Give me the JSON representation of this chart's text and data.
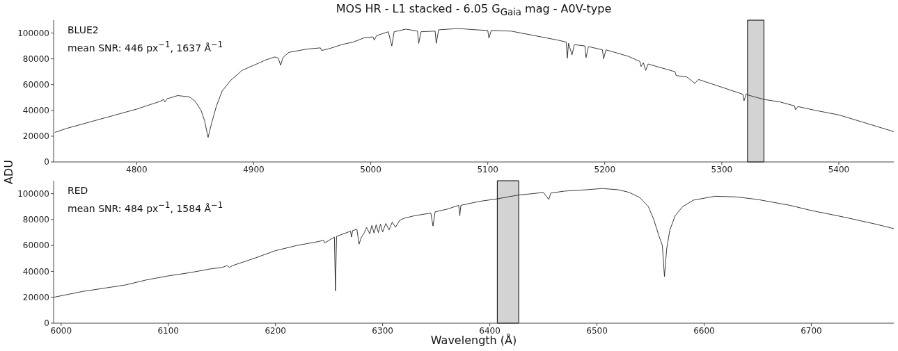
{
  "chart_data": [
    {
      "type": "line",
      "title": "MOS HR - L1 stacked - 6.05 G$_{Gaia}$ mag - A0V-type",
      "ylabel": "ADU",
      "annotations": [
        "BLUE2",
        "mean SNR: 446 px$^{−1}$, 1637 Å$^{−1}$"
      ],
      "xlim": [
        4729,
        5447
      ],
      "xticks": [
        4800,
        4900,
        5000,
        5100,
        5200,
        5300,
        5400
      ],
      "ylim": [
        0,
        110000
      ],
      "yticks": [
        0,
        20000,
        40000,
        60000,
        80000,
        100000
      ],
      "bands": [
        {
          "axis": "x",
          "from": 5322,
          "to": 5336,
          "color": "#d3d3d3"
        }
      ],
      "series": [
        {
          "color": "#222222",
          "x": [
            4730,
            4740,
            4760,
            4780,
            4800,
            4820,
            4823,
            4824,
            4826,
            4835,
            4845,
            4850,
            4855,
            4858,
            4861,
            4864,
            4868,
            4873,
            4880,
            4890,
            4900,
            4910,
            4918,
            4921,
            4923,
            4925,
            4930,
            4945,
            4957,
            4958,
            4965,
            4975,
            4985,
            4995,
            5002,
            5003,
            5005,
            5015,
            5018,
            5020,
            5030,
            5040,
            5041,
            5043,
            5055,
            5056,
            5058,
            5075,
            5090,
            5100,
            5101,
            5103,
            5120,
            5140,
            5160,
            5167,
            5168,
            5169,
            5172,
            5174,
            5183,
            5184,
            5186,
            5198,
            5199,
            5201,
            5220,
            5230,
            5231,
            5233,
            5235,
            5237,
            5260,
            5261,
            5270,
            5277,
            5280,
            5300,
            5318,
            5319,
            5321,
            5322,
            5336,
            5350,
            5362,
            5363,
            5365,
            5380,
            5400,
            5420,
            5447
          ],
          "values": [
            22900,
            26000,
            31000,
            36000,
            41000,
            47000,
            48500,
            46500,
            49000,
            51500,
            50500,
            47000,
            40000,
            32000,
            19000,
            30000,
            43000,
            55000,
            63000,
            71000,
            75000,
            79000,
            81500,
            80500,
            75000,
            81000,
            85000,
            87500,
            88500,
            86500,
            88000,
            91000,
            93000,
            96500,
            97000,
            94500,
            98000,
            101000,
            90000,
            101000,
            103000,
            101500,
            92000,
            101000,
            101500,
            92000,
            102500,
            103500,
            102500,
            102000,
            96000,
            102000,
            101500,
            98000,
            94500,
            93000,
            80500,
            92000,
            83000,
            91000,
            90000,
            81000,
            89500,
            87000,
            80000,
            87000,
            82000,
            78000,
            74000,
            77000,
            71000,
            76000,
            70000,
            67000,
            66000,
            61000,
            64000,
            58000,
            52500,
            47500,
            53000,
            52000,
            48500,
            46500,
            43500,
            40500,
            43000,
            40000,
            36500,
            31000,
            23500
          ]
        }
      ]
    },
    {
      "type": "line",
      "xlabel": "Wavelength (Å)",
      "annotations": [
        "RED",
        "mean SNR: 484 px$^{−1}$, 1584 Å$^{−1}$"
      ],
      "xlim": [
        5993,
        6777
      ],
      "xticks": [
        6000,
        6100,
        6200,
        6300,
        6400,
        6500,
        6600,
        6700
      ],
      "ylim": [
        0,
        110000
      ],
      "yticks": [
        0,
        20000,
        40000,
        60000,
        80000,
        100000
      ],
      "bands": [
        {
          "axis": "x",
          "from": 6407,
          "to": 6427,
          "color": "#d3d3d3"
        }
      ],
      "series": [
        {
          "color": "#222222",
          "x": [
            5993,
            6020,
            6040,
            6060,
            6080,
            6100,
            6120,
            6140,
            6150,
            6155,
            6157,
            6160,
            6180,
            6200,
            6220,
            6240,
            6245,
            6246,
            6255,
            6256,
            6257,
            6270,
            6271,
            6272,
            6276,
            6278,
            6280,
            6283,
            6285,
            6288,
            6290,
            6292,
            6294,
            6296,
            6298,
            6300,
            6303,
            6306,
            6309,
            6312,
            6316,
            6320,
            6330,
            6345,
            6347,
            6349,
            6360,
            6371,
            6372,
            6373,
            6390,
            6407,
            6427,
            6440,
            6450,
            6455,
            6457,
            6470,
            6490,
            6505,
            6520,
            6530,
            6540,
            6548,
            6553,
            6558,
            6561,
            6563,
            6565,
            6568,
            6573,
            6580,
            6590,
            6610,
            6630,
            6650,
            6680,
            6700,
            6730,
            6760,
            6777
          ],
          "values": [
            20000,
            24500,
            27000,
            29500,
            33500,
            36500,
            39000,
            42000,
            43000,
            44500,
            43000,
            44500,
            50000,
            56000,
            60000,
            63000,
            64000,
            62000,
            66500,
            25000,
            67000,
            71000,
            66500,
            71500,
            72500,
            61000,
            66000,
            70000,
            74000,
            69000,
            75500,
            69500,
            76000,
            70000,
            76500,
            70500,
            77000,
            72000,
            78000,
            74000,
            79500,
            81000,
            83000,
            85000,
            75000,
            86000,
            88000,
            91000,
            83000,
            91000,
            94000,
            96000,
            99000,
            100000,
            101000,
            95500,
            100500,
            102000,
            103000,
            104000,
            103000,
            101000,
            97000,
            90000,
            80000,
            67000,
            60000,
            36000,
            57000,
            72000,
            83000,
            90000,
            95000,
            98000,
            97500,
            95500,
            91000,
            87000,
            82000,
            76500,
            73000
          ]
        }
      ]
    }
  ]
}
